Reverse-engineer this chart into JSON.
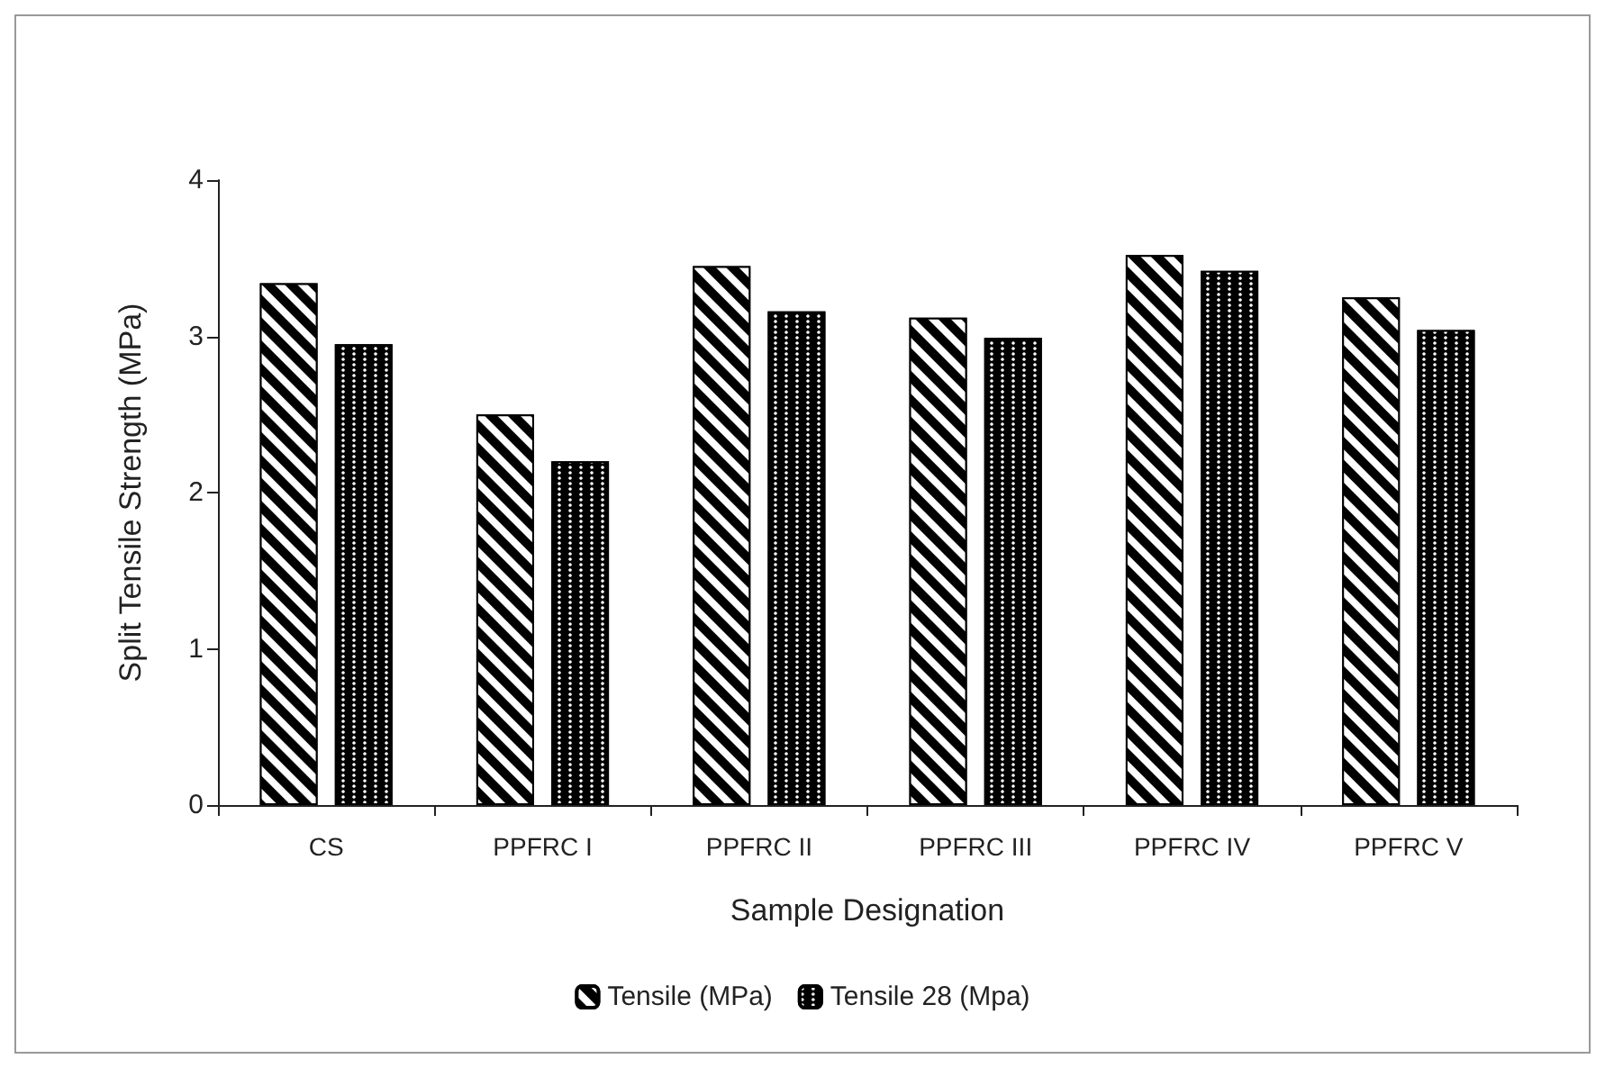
{
  "chart_data": {
    "type": "bar",
    "xlabel": "Sample Designation",
    "ylabel": "Split Tensile Strength (MPa)",
    "categories": [
      "CS",
      "PPFRC I",
      "PPFRC II",
      "PPFRC III",
      "PPFRC IV",
      "PPFRC V"
    ],
    "series": [
      {
        "name": "Tensile (MPa)",
        "color": "#000000",
        "values": [
          3.34,
          2.5,
          3.45,
          3.12,
          3.52,
          3.25
        ]
      },
      {
        "name": "Tensile 28 (Mpa)",
        "color": "#000000",
        "values": [
          2.95,
          2.2,
          3.16,
          2.99,
          3.42,
          3.04
        ]
      }
    ],
    "ylim": [
      0,
      4
    ],
    "yticks": [
      0,
      1,
      2,
      3,
      4
    ],
    "grid": false,
    "legend": "bottom"
  }
}
